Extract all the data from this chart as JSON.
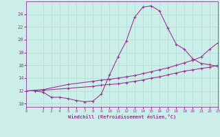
{
  "xlabel": "Windchill (Refroidissement éolien,°C)",
  "bg_color": "#cceee8",
  "grid_color": "#aaddcc",
  "line_color": "#993399",
  "xlim": [
    0,
    23
  ],
  "ylim": [
    9.5,
    26.0
  ],
  "yticks": [
    10,
    12,
    14,
    16,
    18,
    20,
    22,
    24
  ],
  "xticks": [
    0,
    2,
    3,
    4,
    5,
    6,
    7,
    8,
    9,
    10,
    11,
    12,
    13,
    14,
    15,
    16,
    17,
    18,
    19,
    20,
    21,
    22,
    23
  ],
  "line1_x": [
    1,
    2,
    3,
    4,
    5,
    6,
    7,
    8,
    9,
    10,
    11,
    12,
    13,
    14,
    15,
    16,
    17,
    18,
    19,
    20,
    21,
    22,
    23
  ],
  "line1_y": [
    12.0,
    11.8,
    11.0,
    11.0,
    10.8,
    10.5,
    10.3,
    10.4,
    11.5,
    14.5,
    17.3,
    19.8,
    23.5,
    25.1,
    25.3,
    24.5,
    21.8,
    19.3,
    18.5,
    17.0,
    16.3,
    16.1,
    15.8
  ],
  "line2_x": [
    0,
    2,
    5,
    8,
    9,
    10,
    11,
    12,
    13,
    14,
    15,
    16,
    17,
    18,
    19,
    20,
    21,
    22,
    23
  ],
  "line2_y": [
    12.0,
    12.2,
    13.0,
    13.5,
    13.7,
    13.8,
    14.0,
    14.2,
    14.4,
    14.7,
    15.0,
    15.3,
    15.6,
    16.0,
    16.4,
    16.8,
    17.3,
    18.5,
    19.5
  ],
  "line3_x": [
    0,
    2,
    5,
    8,
    9,
    10,
    11,
    12,
    13,
    14,
    15,
    16,
    17,
    18,
    19,
    20,
    21,
    22,
    23
  ],
  "line3_y": [
    12.0,
    12.1,
    12.4,
    12.7,
    12.9,
    13.0,
    13.1,
    13.3,
    13.5,
    13.7,
    14.0,
    14.2,
    14.5,
    14.8,
    15.1,
    15.3,
    15.5,
    15.7,
    16.0
  ]
}
